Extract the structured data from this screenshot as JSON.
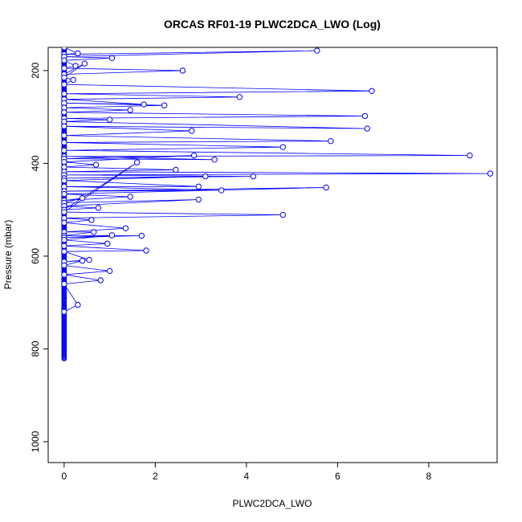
{
  "colors": {
    "series": "#0000ff",
    "axis": "#000000",
    "background": "#ffffff"
  },
  "chart_data": {
    "type": "line",
    "title": "ORCAS RF01-19 PLWC2DCA_LWO (Log)",
    "xlabel": "PLWC2DCA_LWO",
    "ylabel": "Pressure (mbar)",
    "xlim": [
      -0.35,
      9.5
    ],
    "ylim": [
      1045,
      150
    ],
    "y_reversed": true,
    "grid": false,
    "legend": "none",
    "x_ticks": [
      0,
      2,
      4,
      6,
      8
    ],
    "x_tick_labels": [
      "0",
      "2",
      "4",
      "6",
      "8"
    ],
    "y_ticks": [
      200,
      400,
      600,
      800,
      1000
    ],
    "y_tick_labels": [
      "200",
      "400",
      "600",
      "800",
      "1000"
    ],
    "marker": "open-circle",
    "series": [
      {
        "x": [
          0.0,
          0.3,
          0.0,
          5.55,
          0.0,
          1.05,
          0.0,
          0.25,
          0.0,
          2.6,
          0.0,
          0.45,
          0.0,
          0.2,
          0.0,
          6.75,
          0.0,
          3.85,
          0.0,
          1.75,
          0.0,
          2.2,
          0.0,
          1.45,
          0.0,
          6.6,
          0.0,
          1.0,
          0.0,
          6.65,
          0.0,
          2.8,
          0.0,
          5.85,
          0.0,
          4.8,
          0.0,
          8.9,
          0.0,
          3.3,
          0.0,
          2.85,
          0.0,
          0.7,
          0.0,
          2.45,
          0.0,
          9.35,
          0.0,
          4.15,
          0.0,
          3.1,
          0.0,
          2.95,
          0.0,
          3.45,
          0.0,
          5.75,
          0.0,
          1.45,
          0.0,
          0.4,
          0.0,
          2.95,
          0.0,
          0.75,
          0.0,
          1.6,
          0.0,
          4.8,
          0.0,
          0.6,
          0.0,
          1.35,
          0.0,
          0.65,
          0.0,
          1.7,
          0.0,
          1.05,
          0.0,
          0.95,
          0.0,
          1.8,
          0.0,
          0.55,
          0.0,
          0.4,
          0.0,
          1.0,
          0.0,
          0.8,
          0.0,
          0.3,
          0.0
        ],
        "y": [
          150,
          163,
          165,
          157,
          170,
          173,
          178,
          190,
          195,
          200,
          208,
          185,
          215,
          220,
          230,
          244,
          250,
          257,
          262,
          273,
          270,
          275,
          280,
          285,
          290,
          298,
          303,
          306,
          310,
          325,
          320,
          330,
          340,
          352,
          355,
          365,
          372,
          383,
          385,
          392,
          390,
          383,
          397,
          403,
          408,
          414,
          418,
          422,
          425,
          428,
          432,
          428,
          437,
          450,
          450,
          458,
          460,
          452,
          466,
          472,
          480,
          475,
          485,
          478,
          492,
          496,
          500,
          398,
          505,
          511,
          518,
          522,
          528,
          540,
          548,
          548,
          556,
          556,
          560,
          555,
          565,
          573,
          578,
          588,
          590,
          608,
          612,
          610,
          620,
          632,
          640,
          652,
          660,
          705,
          720
        ]
      }
    ],
    "dense_column_x": 0.0,
    "dense_column_ylim": [
      150,
      822
    ]
  }
}
